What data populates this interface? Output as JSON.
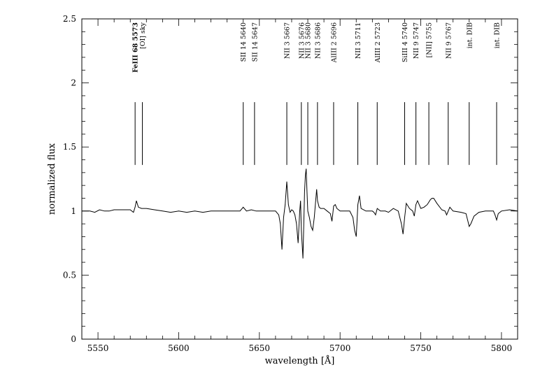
{
  "chart_data": {
    "type": "line",
    "title": "",
    "xlabel": "wavelength [Å]",
    "ylabel": "normalized flux",
    "xlim": [
      5540,
      5810
    ],
    "ylim": [
      0,
      2.5
    ],
    "x_ticks": [
      5550,
      5600,
      5650,
      5700,
      5750,
      5800
    ],
    "y_ticks": [
      0,
      0.5,
      1,
      1.5,
      2,
      2.5
    ],
    "x_tick_labels": [
      "5550",
      "5600",
      "5650",
      "5700",
      "5750",
      "5800"
    ],
    "y_tick_labels": [
      "0",
      "0.5",
      "1",
      "1.5",
      "2",
      "2.5"
    ],
    "grid": false,
    "legend": "none",
    "line_ids": [
      {
        "wavelength": 5573,
        "label": "FeIII 68 5573",
        "bold": true
      },
      {
        "wavelength": 5577.5,
        "label": "[OI] sky",
        "bold": false
      },
      {
        "wavelength": 5640,
        "label": "SII 14 5640",
        "bold": false
      },
      {
        "wavelength": 5647,
        "label": "SII 14 5647",
        "bold": false
      },
      {
        "wavelength": 5667,
        "label": "NII 3 5667",
        "bold": false
      },
      {
        "wavelength": 5676,
        "label": "NII 3 5676",
        "bold": false
      },
      {
        "wavelength": 5680,
        "label": "NII 3 5680",
        "bold": false
      },
      {
        "wavelength": 5686,
        "label": "NII 3 5686",
        "bold": false
      },
      {
        "wavelength": 5696,
        "label": "AlIII 2 5696",
        "bold": false
      },
      {
        "wavelength": 5711,
        "label": "NII 3 5711",
        "bold": false
      },
      {
        "wavelength": 5723,
        "label": "AlIII 2 5723",
        "bold": false
      },
      {
        "wavelength": 5740,
        "label": "SiIII 4 5740",
        "bold": false
      },
      {
        "wavelength": 5747,
        "label": "NII 9 5747",
        "bold": false
      },
      {
        "wavelength": 5755,
        "label": "[NII] 5755",
        "bold": false
      },
      {
        "wavelength": 5767,
        "label": "NII 9 5767",
        "bold": false
      },
      {
        "wavelength": 5780,
        "label": "int. DIB",
        "bold": false
      },
      {
        "wavelength": 5797,
        "label": "int. DIB",
        "bold": false
      }
    ],
    "line_id_marker_range": [
      1.36,
      1.85
    ],
    "series": [
      {
        "x": [
          5540,
          5545,
          5548,
          5551,
          5554,
          5557,
          5560,
          5565,
          5570,
          5572,
          5573,
          5573.8,
          5575,
          5577,
          5580,
          5585,
          5590,
          5595,
          5600,
          5605,
          5610,
          5615,
          5620,
          5625,
          5630,
          5635,
          5638,
          5640,
          5642,
          5645,
          5648,
          5652,
          5656,
          5660,
          5662,
          5663,
          5664,
          5665,
          5666,
          5667,
          5668,
          5669,
          5670,
          5671,
          5672,
          5673,
          5674,
          5675,
          5675.5,
          5676,
          5677,
          5677.5,
          5678,
          5678.5,
          5679,
          5679.5,
          5680,
          5681,
          5682,
          5683,
          5684,
          5685,
          5685.5,
          5686,
          5687,
          5688,
          5690,
          5692,
          5694,
          5695,
          5696,
          5697,
          5698,
          5700,
          5703,
          5706,
          5708,
          5709,
          5710,
          5711,
          5712,
          5713,
          5716,
          5720,
          5721,
          5722,
          5723,
          5725,
          5728,
          5730,
          5733,
          5736,
          5737,
          5738,
          5739,
          5740,
          5741,
          5743,
          5745,
          5746,
          5747,
          5748,
          5750,
          5752,
          5754,
          5756,
          5757,
          5758,
          5760,
          5763,
          5765,
          5766,
          5767,
          5768,
          5770,
          5775,
          5778,
          5779,
          5780,
          5781,
          5783,
          5786,
          5790,
          5795,
          5796,
          5797,
          5798,
          5800,
          5805,
          5810
        ],
        "y": [
          1.0,
          1.0,
          0.99,
          1.01,
          1.0,
          1.0,
          1.01,
          1.01,
          1.01,
          0.99,
          1.03,
          1.08,
          1.03,
          1.02,
          1.02,
          1.01,
          1.0,
          0.99,
          1.0,
          0.99,
          1.0,
          0.99,
          1.0,
          1.0,
          1.0,
          1.0,
          1.0,
          1.03,
          1.0,
          1.01,
          1.0,
          1.0,
          1.0,
          1.0,
          0.97,
          0.9,
          0.7,
          0.95,
          1.05,
          1.23,
          1.05,
          0.99,
          1.01,
          1.0,
          0.97,
          0.9,
          0.75,
          1.0,
          1.08,
          0.85,
          0.63,
          0.9,
          1.15,
          1.28,
          1.33,
          1.15,
          1.0,
          0.95,
          0.88,
          0.85,
          0.95,
          1.1,
          1.17,
          1.08,
          1.03,
          1.02,
          1.02,
          1.0,
          0.98,
          0.92,
          1.04,
          1.05,
          1.02,
          1.0,
          1.0,
          1.0,
          0.95,
          0.85,
          0.8,
          1.05,
          1.12,
          1.02,
          1.0,
          1.0,
          0.99,
          0.97,
          1.02,
          1.0,
          1.0,
          0.99,
          1.02,
          1.0,
          0.95,
          0.9,
          0.82,
          0.95,
          1.06,
          1.02,
          1.0,
          0.96,
          1.05,
          1.08,
          1.02,
          1.03,
          1.05,
          1.09,
          1.1,
          1.1,
          1.06,
          1.01,
          1.0,
          0.97,
          1.0,
          1.03,
          1.0,
          0.99,
          0.98,
          0.93,
          0.88,
          0.9,
          0.96,
          0.99,
          1.0,
          1.0,
          0.97,
          0.93,
          0.98,
          1.0,
          1.01,
          1.0
        ]
      }
    ]
  }
}
